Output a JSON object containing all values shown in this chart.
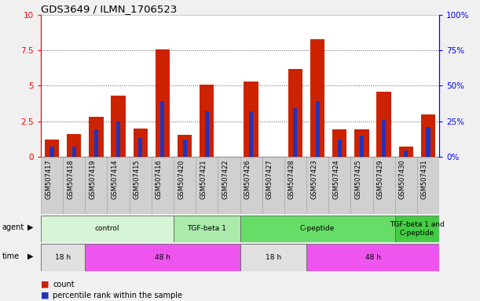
{
  "title": "GDS3649 / ILMN_1706523",
  "samples": [
    "GSM507417",
    "GSM507418",
    "GSM507419",
    "GSM507414",
    "GSM507415",
    "GSM507416",
    "GSM507420",
    "GSM507421",
    "GSM507422",
    "GSM507426",
    "GSM507427",
    "GSM507428",
    "GSM507423",
    "GSM507424",
    "GSM507425",
    "GSM507429",
    "GSM507430",
    "GSM507431"
  ],
  "count_values": [
    1.2,
    1.6,
    2.8,
    4.3,
    2.0,
    7.6,
    1.55,
    5.1,
    0.0,
    5.3,
    0.0,
    6.2,
    8.3,
    1.9,
    1.9,
    4.6,
    0.7,
    3.0
  ],
  "percentile_values": [
    0.7,
    0.7,
    1.9,
    2.5,
    1.3,
    3.9,
    1.2,
    3.2,
    0.0,
    3.2,
    0.0,
    3.4,
    3.9,
    1.2,
    1.5,
    2.6,
    0.4,
    2.1
  ],
  "bar_color": "#cc2200",
  "pct_color": "#2233bb",
  "ylim": [
    0,
    10
  ],
  "yticks": [
    0,
    2.5,
    5.0,
    7.5,
    10
  ],
  "ytick_labels_left": [
    "0",
    "2.5",
    "5",
    "7.5",
    "10"
  ],
  "ytick_labels_right": [
    "0%",
    "25%",
    "50%",
    "75%",
    "100%"
  ],
  "agent_groups": [
    {
      "label": "control",
      "start": 0,
      "end": 5,
      "color": "#d6f5d6"
    },
    {
      "label": "TGF-beta 1",
      "start": 6,
      "end": 8,
      "color": "#aaeaaa"
    },
    {
      "label": "C-peptide",
      "start": 9,
      "end": 15,
      "color": "#66dd66"
    },
    {
      "label": "TGF-beta 1 and\nC-peptide",
      "start": 16,
      "end": 17,
      "color": "#44cc44"
    }
  ],
  "time_groups": [
    {
      "label": "18 h",
      "start": 0,
      "end": 1,
      "color": "#e0e0e0"
    },
    {
      "label": "48 h",
      "start": 2,
      "end": 8,
      "color": "#ee55ee"
    },
    {
      "label": "18 h",
      "start": 9,
      "end": 11,
      "color": "#e0e0e0"
    },
    {
      "label": "48 h",
      "start": 12,
      "end": 17,
      "color": "#ee55ee"
    }
  ],
  "fig_bg": "#f0f0f0",
  "plot_bg": "#ffffff"
}
